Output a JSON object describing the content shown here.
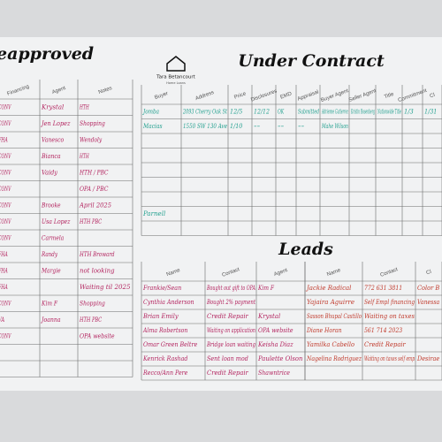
{
  "preapproved": {
    "title": "eapproved",
    "headers": [
      "Financing",
      "Agent",
      "Notes"
    ],
    "rows": [
      [
        "CONV",
        "Krystal",
        "HTH"
      ],
      [
        "CONV",
        "Jen Lopez",
        "Shopping"
      ],
      [
        "FHA",
        "Vanesco",
        "Wendoly"
      ],
      [
        "CONV",
        "Bianca",
        "HTH"
      ],
      [
        "CONV",
        "Vaidy",
        "HTH / PBC"
      ],
      [
        "CONV",
        null,
        "OPA / PBC"
      ],
      [
        "CONV",
        "Brooke",
        "April 2025"
      ],
      [
        "CONV",
        "Usa Lopez",
        "HTH PBC"
      ],
      [
        "CONV",
        "Carmela",
        null
      ],
      [
        "FHA",
        "Randy",
        "HTH Broward"
      ],
      [
        "FHA",
        "Margie",
        "not looking"
      ],
      [
        "FHA",
        null,
        "Waiting til 2025"
      ],
      [
        "CONV",
        "Kim F",
        "Shopping"
      ],
      [
        "VA",
        "Joanna",
        "HTH PBC"
      ],
      [
        "CONV",
        null,
        "OPA website"
      ]
    ]
  },
  "logo": {
    "name": "Tara Betancourt",
    "tagline": "Home Loans"
  },
  "under_contract": {
    "title": "Under Contract",
    "headers": [
      "Buyer",
      "Address",
      "Price",
      "Disclosures",
      "EMD",
      "Appraisal",
      "Buyer Agent",
      "Seller Agent",
      "Title",
      "Commitment",
      "Cl"
    ],
    "rows": [
      [
        "Jomba",
        "2093 Cherry Oak St",
        "12/5",
        "12/12",
        "OK",
        "Submitted",
        "Adrienne Gutierrez",
        "Kristin Rosenberg",
        "Nationwide Title",
        "1/3",
        "1/31"
      ],
      [
        "Macias",
        "1550 SW 130 Ave",
        "1/10",
        "--",
        "--",
        "--",
        "Mahe Wilson",
        null,
        null,
        null,
        null
      ],
      null,
      null,
      null,
      null,
      null,
      [
        "Parnell",
        null,
        null,
        null,
        null,
        null,
        null,
        null,
        null,
        null,
        null
      ]
    ]
  },
  "leads": {
    "title": "Leads",
    "left": {
      "headers": [
        "Name",
        "Contact",
        "Agent"
      ],
      "rows": [
        [
          "Frankie/Sean",
          "Bought out gift to OPA",
          "Kim F"
        ],
        [
          "Cynthia Anderson",
          "Bought 2% payment",
          null
        ],
        [
          "Brian Emily",
          "Credit Repair",
          "Krystal"
        ],
        [
          "Alma Robertson",
          "Waiting on application",
          "OPA website"
        ],
        [
          "Omar Green Beltre",
          "Bridge loan waiting",
          "Keisha Diaz"
        ],
        [
          "Kenrick Rashad",
          "Sent loan mod",
          "Paulette Olson"
        ],
        [
          "Recco/Ann Pere",
          "Credit Repair",
          "Shawntrice"
        ]
      ]
    },
    "right": {
      "headers": [
        "Name",
        "Contact",
        "Cl"
      ],
      "rows": [
        [
          "Jackie Radical",
          "772 631 3811",
          "Color B"
        ],
        [
          "Yajaira Aguirre",
          "Self Empl financing",
          "Vanessa"
        ],
        [
          "Sasson Bhupal Castillo",
          "Waiting on taxes",
          null
        ],
        [
          "Diane Horan",
          "561 714 2023",
          null
        ],
        [
          "Yamilka Cabello",
          "Credit Repair",
          null
        ],
        [
          "Nagelina Rodriguez",
          "Waiting on taxes self emp",
          "Desirae"
        ]
      ]
    }
  }
}
